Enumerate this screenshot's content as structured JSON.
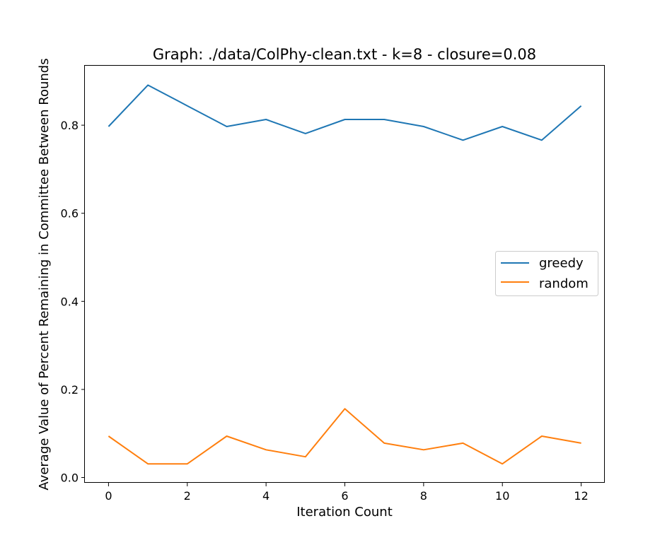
{
  "chart_data": {
    "type": "line",
    "title": "Graph: ./data/ColPhy-clean.txt - k=8 - closure=0.08",
    "xlabel": "Iteration Count",
    "ylabel": "Average Value of Percent Remaining in Committee Between Rounds",
    "xlim": [
      -0.6,
      12.6
    ],
    "ylim": [
      -0.012,
      0.935
    ],
    "x_ticks": [
      0,
      2,
      4,
      6,
      8,
      10,
      12
    ],
    "y_ticks": [
      0.0,
      0.2,
      0.4,
      0.6,
      0.8
    ],
    "x_tick_labels": [
      "0",
      "2",
      "4",
      "6",
      "8",
      "10",
      "12"
    ],
    "y_tick_labels": [
      "0.0",
      "0.2",
      "0.4",
      "0.6",
      "0.8"
    ],
    "x": [
      0,
      1,
      2,
      3,
      4,
      5,
      6,
      7,
      8,
      9,
      10,
      11,
      12
    ],
    "grid": false,
    "legend_position": "center-right",
    "series": [
      {
        "name": "greedy",
        "color": "#1f77b4",
        "values": [
          0.797,
          0.891,
          0.844,
          0.797,
          0.813,
          0.781,
          0.813,
          0.813,
          0.797,
          0.766,
          0.797,
          0.766,
          0.844
        ]
      },
      {
        "name": "random",
        "color": "#ff7f0e",
        "values": [
          0.094,
          0.031,
          0.031,
          0.094,
          0.063,
          0.047,
          0.156,
          0.078,
          0.063,
          0.078,
          0.031,
          0.094,
          0.078
        ]
      }
    ]
  }
}
